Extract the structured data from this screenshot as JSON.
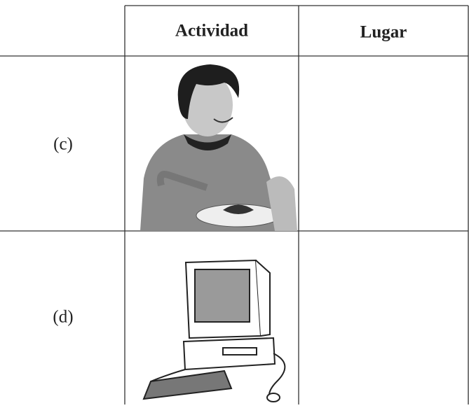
{
  "table": {
    "header": [
      "Actividad",
      "Lugar"
    ],
    "rows": [
      [
        "(c)"
      ],
      [
        "(d)"
      ]
    ]
  }
}
